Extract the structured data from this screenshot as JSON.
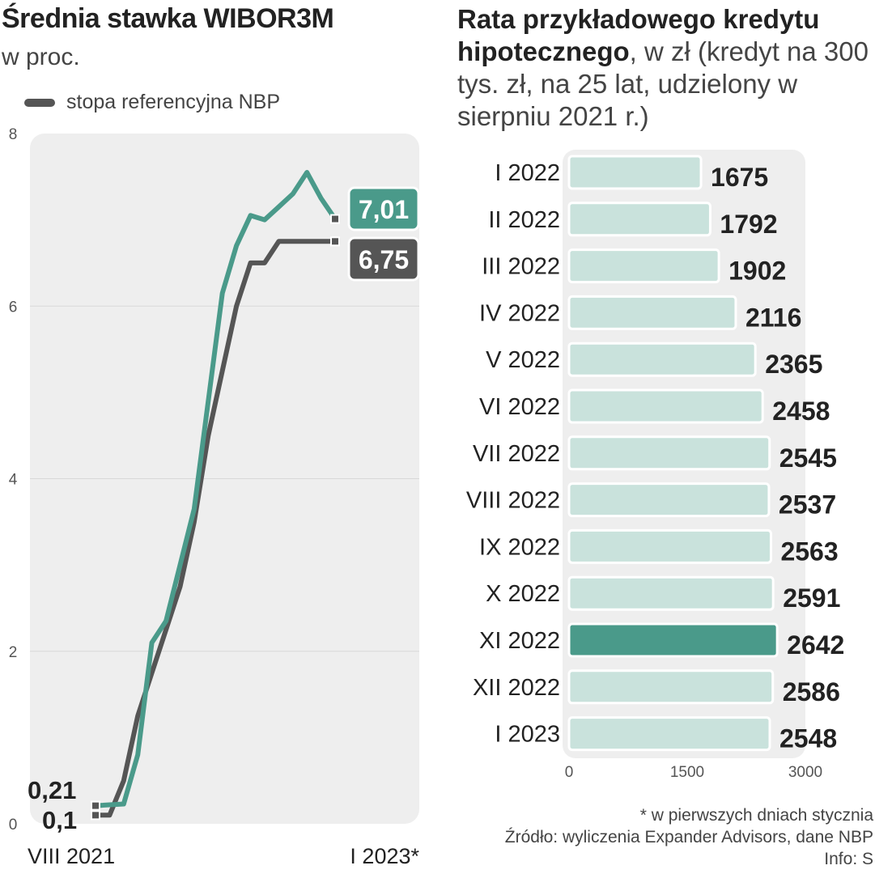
{
  "left": {
    "title": "Średnia stawka WIBOR3M",
    "subtitle": "w proc.",
    "legend_label": "stopa referencyjna NBP"
  },
  "right": {
    "title_bold": "Rata przykładowego kredytu hipotecznego",
    "title_rest": ", w zł (kredyt na 300 tys. zł, na 25 lat, udzielony w sierpniu 2021 r.)"
  },
  "footnote": {
    "line1": "* w pierwszych dniach stycznia",
    "line2": "Źródło: wyliczenia Expander Advisors, dane NBP",
    "line3": "Info: S"
  },
  "colors": {
    "wibor": "#4a9a8a",
    "nbp": "#555555",
    "bar": "#c9e2dc",
    "bar_highlight": "#4a9a8a",
    "panel": "#eeeeee"
  },
  "chart_data": [
    {
      "type": "line",
      "ylim": [
        0,
        8
      ],
      "yticks": [
        "0",
        "2",
        "4",
        "6",
        "8"
      ],
      "x_start_label": "VIII 2021",
      "x_end_label": "I 2023*",
      "series": [
        {
          "name": "WIBOR3M",
          "color": "#4a9a8a",
          "values": [
            0.21,
            0.22,
            0.23,
            0.8,
            2.1,
            2.35,
            3.0,
            3.65,
            4.9,
            6.15,
            6.7,
            7.05,
            7.0,
            7.15,
            7.3,
            7.55,
            7.25,
            7.01
          ],
          "start_label": "0,21",
          "end_label": "7,01"
        },
        {
          "name": "stopa referencyjna NBP",
          "color": "#555555",
          "values": [
            0.1,
            0.1,
            0.5,
            1.25,
            1.75,
            2.25,
            2.75,
            3.5,
            4.5,
            5.25,
            6.0,
            6.5,
            6.5,
            6.75,
            6.75,
            6.75,
            6.75,
            6.75
          ],
          "start_label": "0,1",
          "end_label": "6,75"
        }
      ]
    },
    {
      "type": "bar",
      "orientation": "horizontal",
      "xlim": [
        0,
        3000
      ],
      "xticks": [
        "0",
        "1500",
        "3000"
      ],
      "categories": [
        "I 2022",
        "II 2022",
        "III 2022",
        "IV 2022",
        "V 2022",
        "VI 2022",
        "VII 2022",
        "VIII 2022",
        "IX 2022",
        "X 2022",
        "XI 2022",
        "XII 2022",
        "I 2023"
      ],
      "values": [
        1675,
        1792,
        1902,
        2116,
        2365,
        2458,
        2545,
        2537,
        2563,
        2591,
        2642,
        2586,
        2548
      ],
      "highlight_index": 10
    }
  ]
}
